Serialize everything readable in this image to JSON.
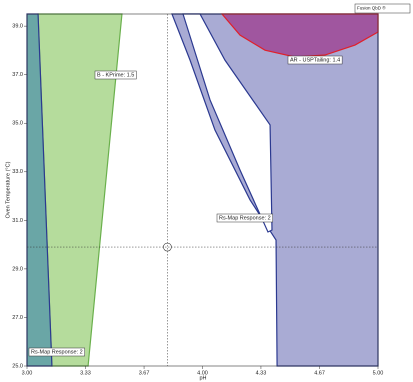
{
  "chart_data": {
    "type": "overlay",
    "brand": "Fusion QbD ®",
    "x_label": "pH",
    "y_label": "Oven Temperature (°C)",
    "xlim": [
      3,
      5
    ],
    "ylim": [
      25,
      39.5
    ],
    "xticks": [
      {
        "value": 3,
        "label": "3.00"
      },
      {
        "value": 3.333,
        "label": "3.33"
      },
      {
        "value": 3.667,
        "label": "3.67"
      },
      {
        "value": 4,
        "label": "4.00"
      },
      {
        "value": 4.333,
        "label": "4.33"
      },
      {
        "value": 4.667,
        "label": "4.67"
      },
      {
        "value": 5,
        "label": "5.00"
      }
    ],
    "yticks": [
      {
        "value": 25,
        "label": "25.0"
      },
      {
        "value": 27,
        "label": "27.0"
      },
      {
        "value": 29,
        "label": "29.0"
      },
      {
        "value": 31,
        "label": "31.0"
      },
      {
        "value": 33,
        "label": "33.0"
      },
      {
        "value": 35,
        "label": "35.0"
      },
      {
        "value": 37,
        "label": "37.0"
      },
      {
        "value": 39,
        "label": "39.0"
      }
    ],
    "regions": [
      {
        "color": "#a9abd4",
        "stroke": "#2b3990",
        "x": [
          3.826,
          5,
          5,
          4.425,
          4.419,
          4.271,
          4.071,
          3.929
        ],
        "y": [
          39.5,
          39.5,
          25,
          25,
          30.19,
          31.84,
          34.72,
          37.6
        ]
      },
      {
        "color": "#ffffff",
        "stroke": "#2b3990",
        "x": [
          3.889,
          3.986,
          4.128,
          4.385,
          4.396,
          4.373,
          4.214,
          4.043
        ],
        "y": [
          39.5,
          39.5,
          37.6,
          34.93,
          30.6,
          30.52,
          33.07,
          35.96
        ]
      },
      {
        "color": "#b5dc9c",
        "stroke": "#6ab04c",
        "x": [
          3.063,
          3.541,
          3.348,
          3.142
        ],
        "y": [
          39.5,
          39.5,
          25,
          25
        ]
      },
      {
        "color": "#6aa6a6",
        "stroke": "#2b3990",
        "x": [
          3,
          3.063,
          3.142,
          3
        ],
        "y": [
          39.5,
          39.5,
          25,
          25
        ]
      },
      {
        "color": "#a0569f",
        "stroke": "#e0202a",
        "x": [
          4.111,
          4.214,
          4.356,
          4.527,
          4.698,
          4.869,
          5,
          5
        ],
        "y": [
          39.5,
          38.63,
          38.01,
          37.73,
          37.81,
          38.22,
          38.76,
          39.5
        ]
      }
    ],
    "annotations": [
      "B - KPrime: 1.5",
      "AR - USPTailing: 1.4",
      "Rs-Map Response: 2",
      "Rs-Map Response: 2"
    ],
    "cursor": {
      "x": 3.8,
      "y": 29.9
    }
  }
}
